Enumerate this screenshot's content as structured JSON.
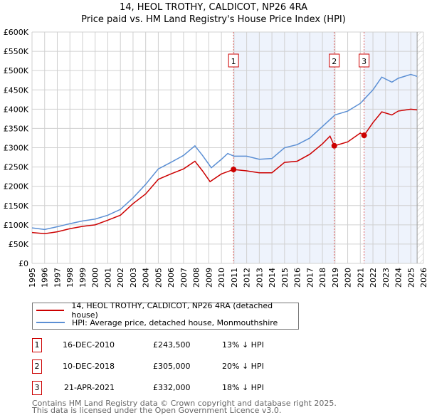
{
  "title": "14, HEOL TROTHY, CALDICOT, NP26 4RA",
  "subtitle": "Price paid vs. HM Land Registry's House Price Index (HPI)",
  "chart_data": {
    "type": "line",
    "xlim": [
      1995,
      2026
    ],
    "ylim": [
      0,
      600000
    ],
    "x_ticks": [
      "1995",
      "1996",
      "1997",
      "1998",
      "1999",
      "2000",
      "2001",
      "2002",
      "2003",
      "2004",
      "2005",
      "2006",
      "2007",
      "2008",
      "2009",
      "2010",
      "2011",
      "2012",
      "2013",
      "2014",
      "2015",
      "2016",
      "2017",
      "2018",
      "2019",
      "2020",
      "2021",
      "2022",
      "2023",
      "2024",
      "2025",
      "2026"
    ],
    "y_ticks": [
      {
        "v": 0,
        "l": "£0"
      },
      {
        "v": 50000,
        "l": "£50K"
      },
      {
        "v": 100000,
        "l": "£100K"
      },
      {
        "v": 150000,
        "l": "£150K"
      },
      {
        "v": 200000,
        "l": "£200K"
      },
      {
        "v": 250000,
        "l": "£250K"
      },
      {
        "v": 300000,
        "l": "£300K"
      },
      {
        "v": 350000,
        "l": "£350K"
      },
      {
        "v": 400000,
        "l": "£400K"
      },
      {
        "v": 450000,
        "l": "£450K"
      },
      {
        "v": 500000,
        "l": "£500K"
      },
      {
        "v": 550000,
        "l": "£550K"
      },
      {
        "v": 600000,
        "l": "£600K"
      }
    ],
    "series": [
      {
        "name": "14, HEOL TROTHY, CALDICOT, NP26 4RA (detached house)",
        "color": "#cc0000",
        "points": [
          [
            1995,
            80000
          ],
          [
            1996,
            77000
          ],
          [
            1997,
            82000
          ],
          [
            1998,
            90000
          ],
          [
            1999,
            96000
          ],
          [
            2000,
            100000
          ],
          [
            2001,
            112000
          ],
          [
            2002,
            125000
          ],
          [
            2003,
            155000
          ],
          [
            2004,
            180000
          ],
          [
            2005,
            218000
          ],
          [
            2006,
            232000
          ],
          [
            2007,
            245000
          ],
          [
            2007.9,
            265000
          ],
          [
            2008.5,
            240000
          ],
          [
            2009.1,
            212000
          ],
          [
            2010,
            232000
          ],
          [
            2010.96,
            243500
          ],
          [
            2012,
            240000
          ],
          [
            2013,
            235000
          ],
          [
            2014,
            235000
          ],
          [
            2015,
            262000
          ],
          [
            2016,
            265000
          ],
          [
            2017,
            283000
          ],
          [
            2018,
            310000
          ],
          [
            2018.6,
            330000
          ],
          [
            2018.94,
            305000
          ],
          [
            2020,
            315000
          ],
          [
            2021,
            338000
          ],
          [
            2021.3,
            332000
          ],
          [
            2022,
            365000
          ],
          [
            2022.7,
            393000
          ],
          [
            2023.5,
            385000
          ],
          [
            2024,
            395000
          ],
          [
            2025,
            400000
          ],
          [
            2025.5,
            398000
          ]
        ]
      },
      {
        "name": "HPI: Average price, detached house, Monmouthshire",
        "color": "#5b8fd4",
        "points": [
          [
            1995,
            92000
          ],
          [
            1996,
            88000
          ],
          [
            1997,
            95000
          ],
          [
            1998,
            103000
          ],
          [
            1999,
            110000
          ],
          [
            2000,
            115000
          ],
          [
            2001,
            125000
          ],
          [
            2002,
            140000
          ],
          [
            2003,
            170000
          ],
          [
            2004,
            205000
          ],
          [
            2005,
            245000
          ],
          [
            2006,
            262000
          ],
          [
            2007,
            280000
          ],
          [
            2007.9,
            305000
          ],
          [
            2008.5,
            280000
          ],
          [
            2009.2,
            248000
          ],
          [
            2010,
            270000
          ],
          [
            2010.5,
            285000
          ],
          [
            2011,
            278000
          ],
          [
            2012,
            278000
          ],
          [
            2013,
            270000
          ],
          [
            2014,
            272000
          ],
          [
            2015,
            300000
          ],
          [
            2016,
            308000
          ],
          [
            2017,
            325000
          ],
          [
            2018,
            355000
          ],
          [
            2019,
            385000
          ],
          [
            2020,
            395000
          ],
          [
            2021,
            415000
          ],
          [
            2022,
            450000
          ],
          [
            2022.7,
            483000
          ],
          [
            2023.5,
            470000
          ],
          [
            2024,
            480000
          ],
          [
            2025,
            490000
          ],
          [
            2025.5,
            485000
          ]
        ]
      }
    ],
    "sales": [
      {
        "n": "1",
        "x": 2010.96,
        "y": 243500
      },
      {
        "n": "2",
        "x": 2018.94,
        "y": 305000
      },
      {
        "n": "3",
        "x": 2021.3,
        "y": 332000
      }
    ],
    "shaded": [
      [
        2010.96,
        2018.94
      ],
      [
        2021.3,
        2025.5
      ]
    ],
    "data_end": 2025.5
  },
  "legend": [
    "14, HEOL TROTHY, CALDICOT, NP26 4RA (detached house)",
    "HPI: Average price, detached house, Monmouthshire"
  ],
  "transactions": [
    {
      "n": "1",
      "date": "16-DEC-2010",
      "price": "£243,500",
      "hpi": "13% ↓ HPI"
    },
    {
      "n": "2",
      "date": "10-DEC-2018",
      "price": "£305,000",
      "hpi": "20% ↓ HPI"
    },
    {
      "n": "3",
      "date": "21-APR-2021",
      "price": "£332,000",
      "hpi": "18% ↓ HPI"
    }
  ],
  "footer": [
    "Contains HM Land Registry data © Crown copyright and database right 2025.",
    "This data is licensed under the Open Government Licence v3.0."
  ]
}
